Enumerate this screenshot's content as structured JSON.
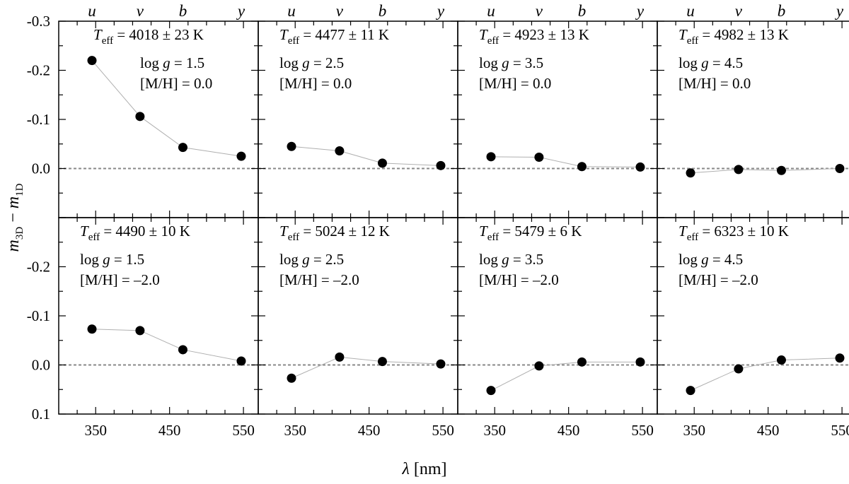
{
  "figure": {
    "xlabel": "λ [nm]",
    "ylabel": "m3D − m1D"
  },
  "chart_data": {
    "type": "scatter",
    "xlabel": "λ [nm]",
    "ylabel": "m3D − m1D",
    "xlim": [
      300,
      570
    ],
    "x_ticks": [
      350,
      450,
      550
    ],
    "band_labels": [
      "u",
      "v",
      "b",
      "y"
    ],
    "band_wavelengths": [
      345,
      410,
      468,
      547
    ],
    "rows": [
      {
        "ylim": [
          0.1,
          -0.3
        ],
        "y_ticks": [
          -0.3,
          -0.2,
          -0.1,
          0.0
        ],
        "y_tick_labels": [
          "-0.3",
          "-0.2",
          "-0.1",
          "0.0"
        ]
      },
      {
        "ylim": [
          0.1,
          -0.3
        ],
        "y_ticks": [
          -0.2,
          -0.1,
          0.0,
          0.1
        ],
        "y_tick_labels": [
          "-0.2",
          "-0.1",
          "0.0",
          "0.1"
        ]
      }
    ],
    "panels": [
      {
        "teff": "= 4018 ± 23 K",
        "logg": "log g = 1.5",
        "mh": "[M/H] = 0.0",
        "values": [
          -0.22,
          -0.106,
          -0.043,
          -0.025
        ]
      },
      {
        "teff": "= 4477 ± 11 K",
        "logg": "log g = 2.5",
        "mh": "[M/H] = 0.0",
        "values": [
          -0.045,
          -0.036,
          -0.011,
          -0.006
        ]
      },
      {
        "teff": "= 4923 ± 13 K",
        "logg": "log g = 3.5",
        "mh": "[M/H] = 0.0",
        "values": [
          -0.024,
          -0.023,
          -0.004,
          -0.003
        ]
      },
      {
        "teff": "= 4982 ± 13 K",
        "logg": "log g = 4.5",
        "mh": "[M/H] = 0.0",
        "values": [
          0.009,
          0.002,
          0.004,
          0.0
        ]
      },
      {
        "teff": "= 4490 ± 10 K",
        "logg": "log g = 1.5",
        "mh": "[M/H] = –2.0",
        "values": [
          -0.073,
          -0.07,
          -0.031,
          -0.008
        ]
      },
      {
        "teff": "= 5024 ± 12 K",
        "logg": "log g = 2.5",
        "mh": "[M/H] = –2.0",
        "values": [
          0.027,
          -0.016,
          -0.007,
          -0.002
        ]
      },
      {
        "teff": "= 5479 ± 6 K",
        "logg": "log g = 3.5",
        "mh": "[M/H] = –2.0",
        "values": [
          0.052,
          0.002,
          -0.006,
          -0.006
        ]
      },
      {
        "teff": "= 6323 ± 10 K",
        "logg": "log g = 4.5",
        "mh": "[M/H] = –2.0",
        "values": [
          0.052,
          0.008,
          -0.01,
          -0.014
        ]
      }
    ],
    "reference_line": 0.0,
    "colors": {
      "points": "#000000",
      "connector": "#b0b0b0",
      "reference": "#888888"
    }
  }
}
